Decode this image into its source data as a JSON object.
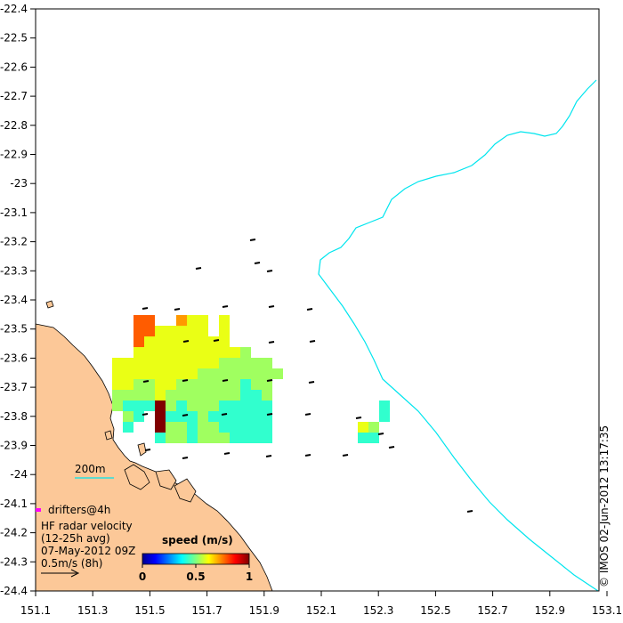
{
  "map": {
    "lon_ticks": [
      "151.1",
      "151.3",
      "151.5",
      "151.7",
      "151.9",
      "152.1",
      "152.3",
      "152.5",
      "152.7",
      "152.9",
      "153.1"
    ],
    "lat_ticks": [
      "-22.4",
      "-22.5",
      "-22.6",
      "-22.7",
      "-22.8",
      "-22.9",
      "-23",
      "-23.1",
      "-23.2",
      "-23.3",
      "-23.4",
      "-23.5",
      "-23.6",
      "-23.7",
      "-23.8",
      "-23.9",
      "-24",
      "-24.1",
      "-24.2",
      "-24.3",
      "-24.4"
    ],
    "lon_range": [
      151.1,
      153.2
    ],
    "lat_range": [
      -24.4,
      -22.4
    ]
  },
  "isobath": {
    "label": "200m",
    "color": "#00e5ee"
  },
  "legend": {
    "drifters_label": "drifters@4h",
    "drifter_color": "#ff00ff",
    "hf_title": "HF radar velocity",
    "hf_avg": "(12-25h avg)",
    "hf_date": "07-May-2012 09Z",
    "scale_label": "0.5m/s (8h)"
  },
  "colorbar": {
    "title": "speed (m/s)",
    "tick_labels": [
      "0",
      "0.5",
      "1"
    ],
    "min": 0,
    "max": 1
  },
  "credit": "© IMOS 02-Jun-2012 13:17:35",
  "colors": {
    "land": "#fcc898",
    "coast_line": "#000000",
    "background": "#ffffff"
  }
}
